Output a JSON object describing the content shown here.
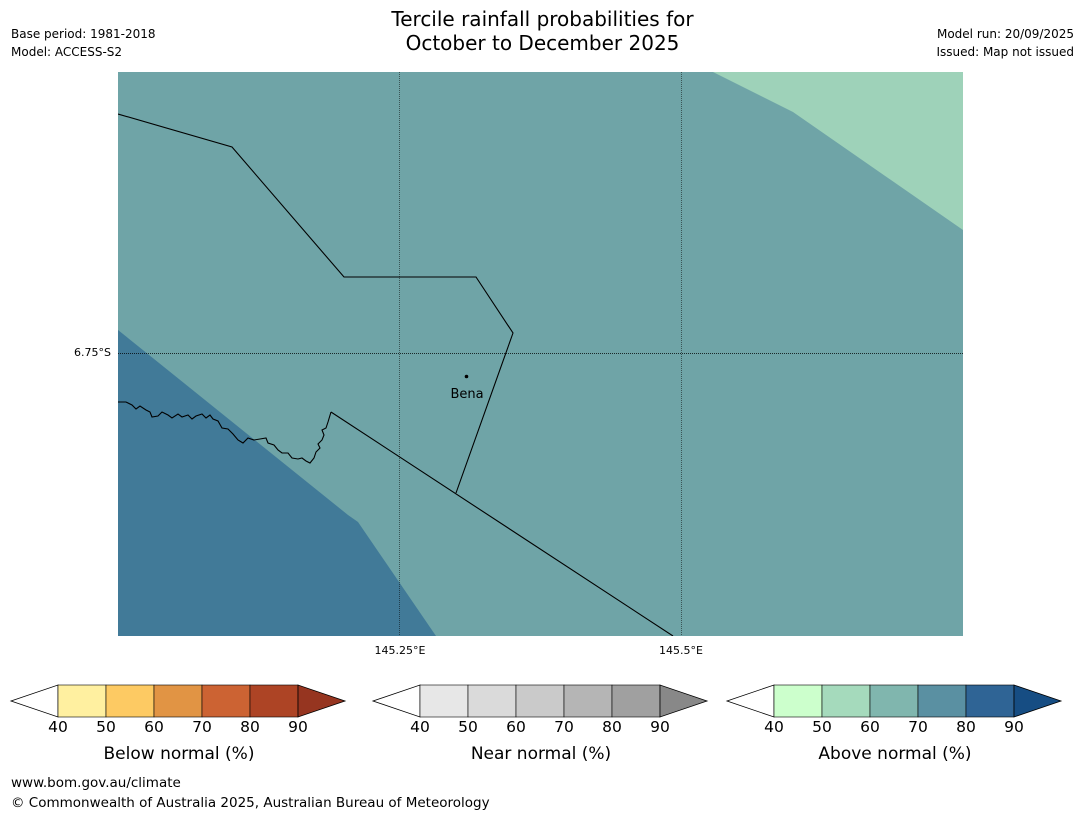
{
  "title_line1": "Tercile rainfall probabilities for",
  "title_line2": "October to December 2025",
  "meta_left": [
    "Base period: 1981-2018",
    "Model: ACCESS-S2"
  ],
  "meta_right": [
    "Model run: 20/09/2025",
    "Issued: Map not issued"
  ],
  "map": {
    "lat_label": "6.75°S",
    "lon_labels": [
      "145.25°E",
      "145.5°E"
    ],
    "town": "Bena",
    "colors": {
      "base": "#6fa4a7",
      "dark": "#417a98",
      "light": "#9ed2b9"
    }
  },
  "colorbars": [
    {
      "label": "Below normal (%)",
      "ticks": [
        "40",
        "50",
        "60",
        "70",
        "80",
        "90"
      ],
      "colors": [
        "#fff0a0",
        "#fdca63",
        "#e19444",
        "#cc6333",
        "#ad4425",
        "#963520"
      ]
    },
    {
      "label": "Near normal (%)",
      "ticks": [
        "40",
        "50",
        "60",
        "70",
        "80",
        "90"
      ],
      "colors": [
        "#e7e7e7",
        "#dadada",
        "#cacaca",
        "#b5b5b5",
        "#a0a0a0",
        "#888888"
      ]
    },
    {
      "label": "Above normal (%)",
      "ticks": [
        "40",
        "50",
        "60",
        "70",
        "80",
        "90"
      ],
      "colors": [
        "#ccffcc",
        "#a5dabc",
        "#80b6ae",
        "#5a90a2",
        "#2f6495",
        "#164d83"
      ]
    }
  ],
  "footer": {
    "url": "www.bom.gov.au/climate",
    "copyright": "© Commonwealth of Australia 2025, Australian Bureau of Meteorology"
  }
}
